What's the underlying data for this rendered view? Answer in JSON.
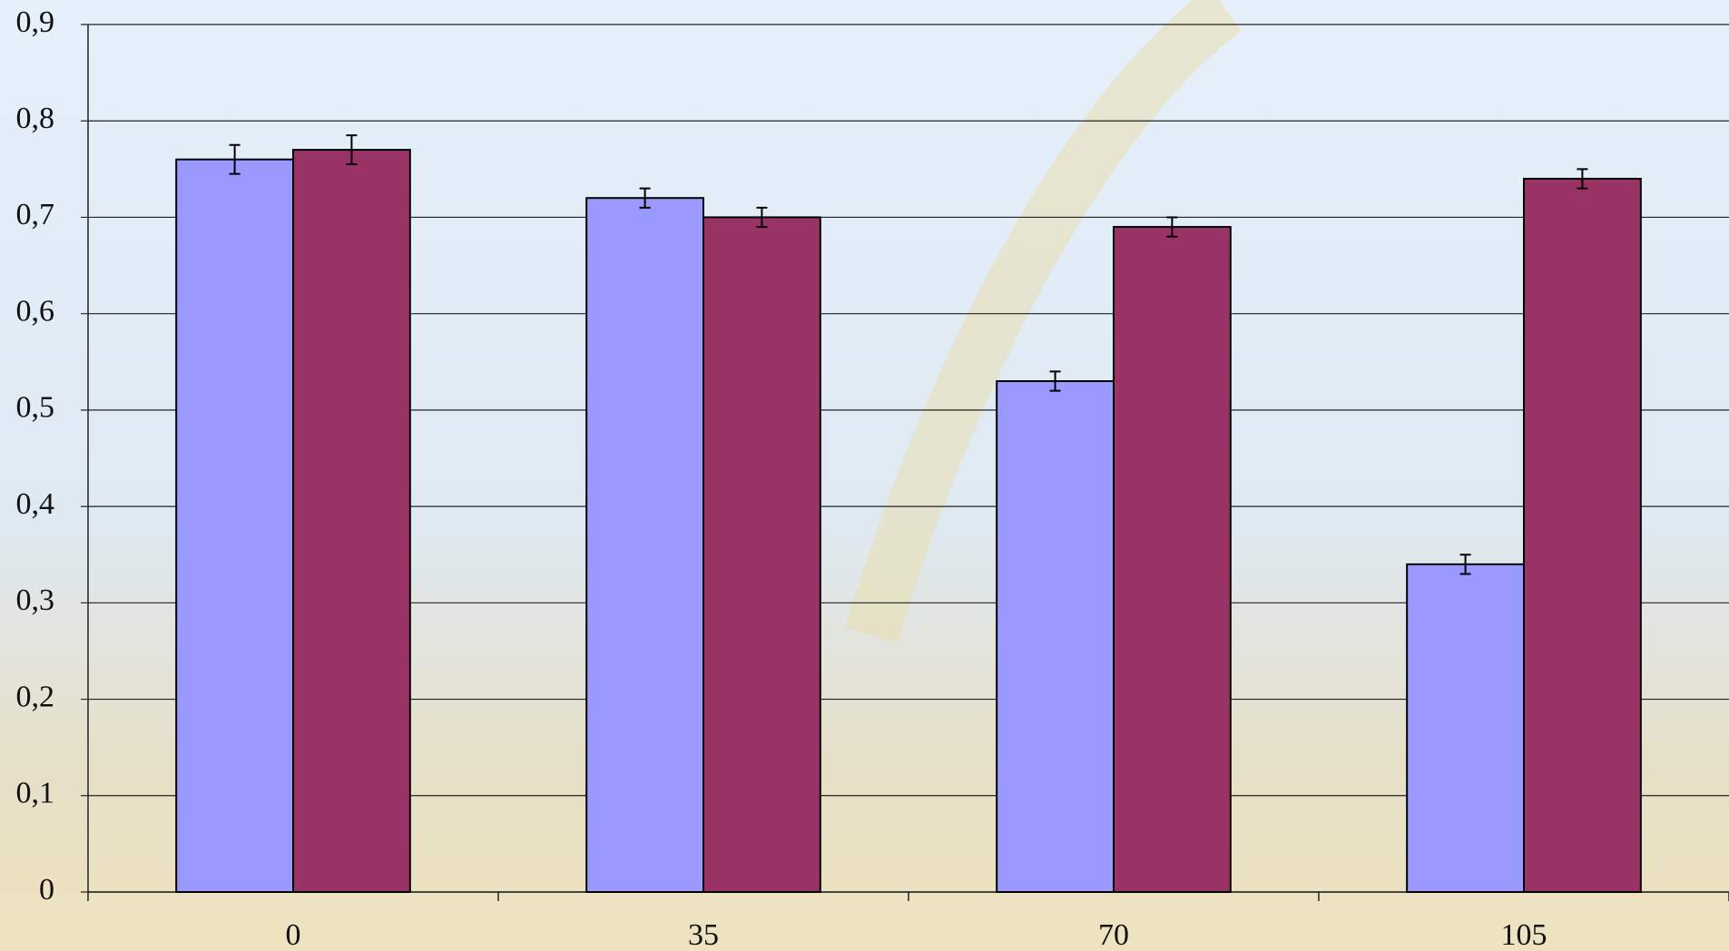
{
  "chart_data": {
    "type": "bar",
    "categories": [
      "0",
      "35",
      "70",
      "105"
    ],
    "series": [
      {
        "color": "#9999ff",
        "values": [
          0.76,
          0.72,
          0.53,
          0.34
        ],
        "errors": [
          0.015,
          0.01,
          0.01,
          0.01
        ]
      },
      {
        "color": "#993366",
        "values": [
          0.77,
          0.7,
          0.69,
          0.74
        ],
        "errors": [
          0.015,
          0.01,
          0.01,
          0.01
        ]
      }
    ],
    "ylim": [
      0,
      0.9
    ],
    "yticks": [
      0,
      {
        "value": 0.1,
        "label": "0,1"
      },
      {
        "value": 0.2,
        "label": "0,2"
      },
      {
        "value": 0.3,
        "label": "0,3"
      },
      {
        "value": 0.4,
        "label": "0,4"
      },
      {
        "value": 0.5,
        "label": "0,5"
      },
      {
        "value": 0.6,
        "label": "0,6"
      },
      {
        "value": 0.7,
        "label": "0,7"
      },
      {
        "value": 0.8,
        "label": "0,8"
      },
      {
        "value": 0.9,
        "label": "0,9"
      }
    ],
    "grid": true
  }
}
